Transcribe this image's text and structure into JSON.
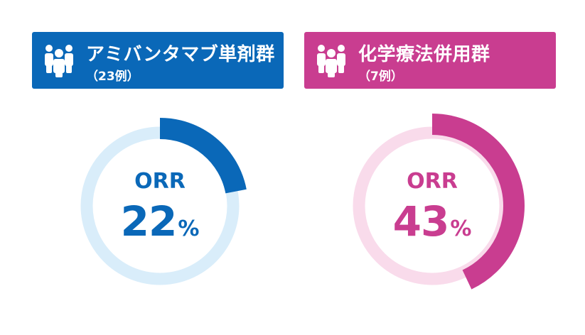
{
  "colors": {
    "mono_main": "#0a68b8",
    "mono_light": "#d9edfa",
    "combo_main": "#c93d90",
    "combo_light": "#f9dbeb"
  },
  "groups": [
    {
      "title": "アミバンタマブ単剤群",
      "count": "（23例）",
      "icon": "people-icon"
    },
    {
      "title": "化学療法併用群",
      "count": "（7例）",
      "icon": "people-icon"
    }
  ],
  "chart_data": [
    {
      "type": "pie",
      "series_label": "アミバンタマブ単剤群",
      "center_label": "ORR",
      "value": 22,
      "value_text": "22",
      "unit": "%"
    },
    {
      "type": "pie",
      "series_label": "化学療法併用群",
      "center_label": "ORR",
      "value": 43,
      "value_text": "43",
      "unit": "%"
    }
  ]
}
